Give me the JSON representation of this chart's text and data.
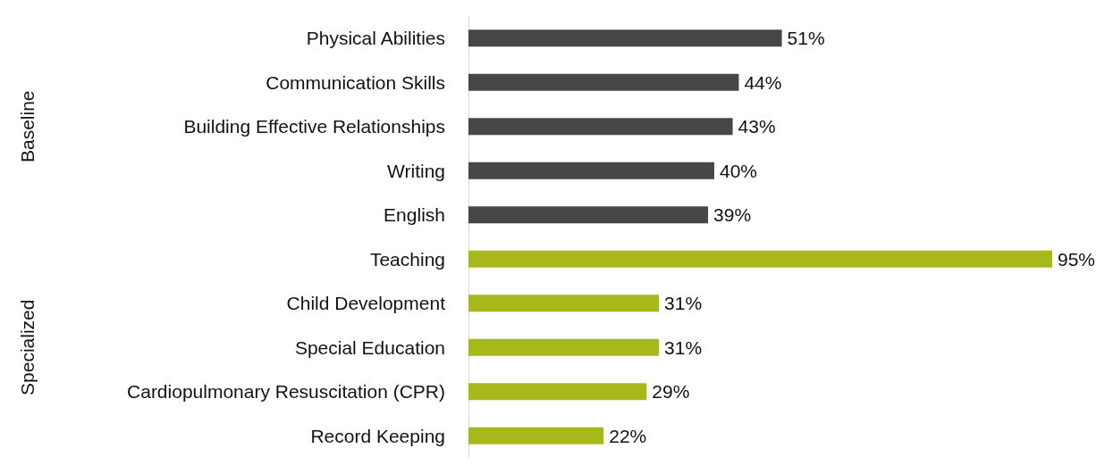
{
  "chart_data": {
    "type": "bar",
    "orientation": "horizontal",
    "stacked": true,
    "categories": [
      "Physical Abilities",
      "Communication Skills",
      "Building Effective Relationships",
      "Writing",
      "English",
      "Teaching",
      "Child Development",
      "Special Education",
      "Cardiopulmonary Resuscitation (CPR)",
      "Record Keeping"
    ],
    "series": [
      {
        "color": "#474747",
        "values": [
          51,
          44,
          43,
          40,
          39,
          null,
          null,
          null,
          null,
          null
        ],
        "value_labels": [
          "51%",
          "44%",
          "43%",
          "40%",
          "39%",
          null,
          null,
          null,
          null,
          null
        ]
      },
      {
        "color": "#a6b81a",
        "values": [
          null,
          null,
          null,
          null,
          null,
          95,
          31,
          31,
          29,
          22
        ],
        "value_labels": [
          null,
          null,
          null,
          null,
          null,
          "95%",
          "31%",
          "31%",
          "29%",
          "22%"
        ]
      }
    ],
    "annotations": [
      "Baseline",
      "Specialized"
    ]
  }
}
